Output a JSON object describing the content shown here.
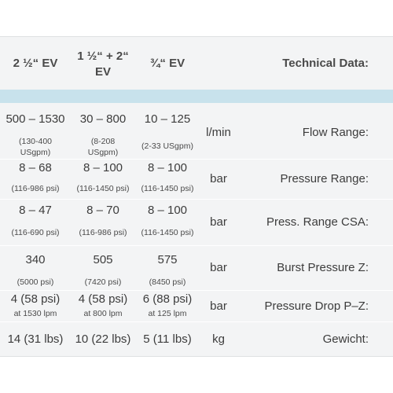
{
  "header": {
    "col1": "2 ½“ EV",
    "col2_line1": "1 ½“ + 2“",
    "col2_line2": "EV",
    "col3": "¾“ EV",
    "title": "Technical Data:"
  },
  "rows": [
    {
      "c1_main": "500 – 1530",
      "c1_sub1": "(130-400",
      "c1_sub2": "USgpm)",
      "c2_main": "30 – 800",
      "c2_sub1": "(8-208",
      "c2_sub2": "USgpm)",
      "c3_main": "10 – 125",
      "c3_sub1": "(2-33 USgpm)",
      "unit": "l/min",
      "label": "Flow Range:"
    },
    {
      "c1_main": "8 – 68",
      "c1_sub": "(116-986 psi)",
      "c2_main": "8 – 100",
      "c2_sub": "(116-1450 psi)",
      "c3_main": "8 – 100",
      "c3_sub": "(116-1450 psi)",
      "unit": "bar",
      "label": "Pressure Range:"
    },
    {
      "c1_main": "8 – 47",
      "c1_sub": "(116-690 psi)",
      "c2_main": "8 – 70",
      "c2_sub": "(116-986 psi)",
      "c3_main": "8 – 100",
      "c3_sub": "(116-1450 psi)",
      "unit": "bar",
      "label": "Press. Range CSA:"
    },
    {
      "c1_main": "340",
      "c1_sub": "(5000 psi)",
      "c2_main": "505",
      "c2_sub": "(7420 psi)",
      "c3_main": "575",
      "c3_sub": "(8450 psi)",
      "unit": "bar",
      "label": "Burst Pressure Z:"
    },
    {
      "c1_main": "4 (58 psi)",
      "c1_sub": "at 1530 lpm",
      "c2_main": "4 (58 psi)",
      "c2_sub": "at 800 lpm",
      "c3_main": "6 (88 psi)",
      "c3_sub": "at 125 lpm",
      "unit": "bar",
      "label": "Pressure Drop P–Z:"
    },
    {
      "c1_main": "14 (31 lbs)",
      "c2_main": "10 (22 lbs)",
      "c3_main": "5 (11 lbs)",
      "unit": "kg",
      "label": "Gewicht:"
    }
  ]
}
